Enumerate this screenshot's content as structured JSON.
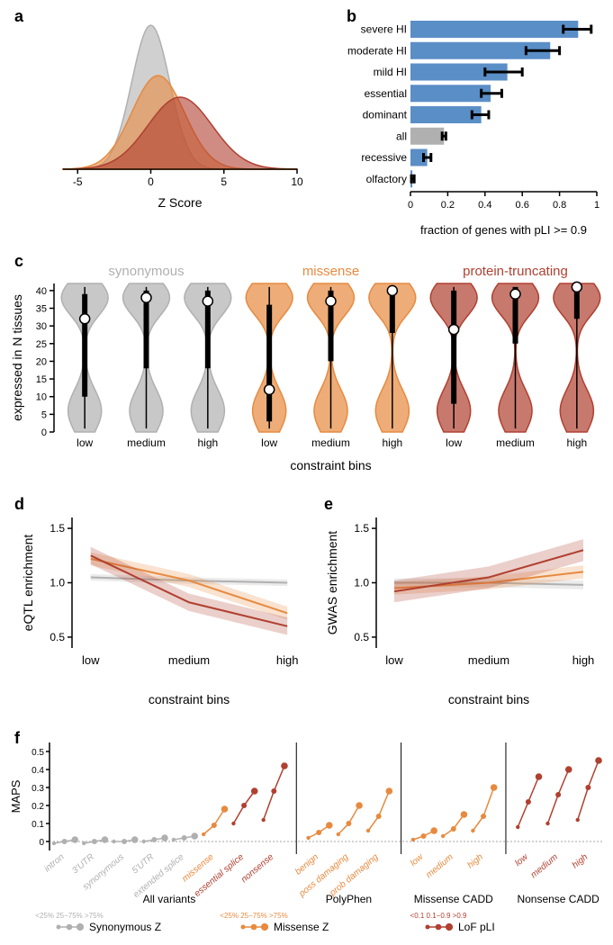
{
  "colors": {
    "grey": "#b0b0b0",
    "grey_fill": "#c0c0c0",
    "orange": "#e78a3f",
    "orange_fill": "#f0a868",
    "sienna": "#b04030",
    "sienna_fill": "#c56050",
    "blue": "#5a8ec7",
    "black": "#000000",
    "white": "#ffffff"
  },
  "panel_a": {
    "label": "a",
    "type": "density",
    "xlabel": "Z Score",
    "xlim": [
      -6,
      10
    ],
    "xticks": [
      -5,
      0,
      5,
      10
    ],
    "series": [
      {
        "color_key": "grey",
        "mean": 0,
        "sd": 1.3,
        "y": 1.0
      },
      {
        "color_key": "orange",
        "mean": 0.5,
        "sd": 1.8,
        "y": 0.65
      },
      {
        "color_key": "sienna",
        "mean": 2.0,
        "sd": 2.2,
        "y": 0.5
      }
    ]
  },
  "panel_b": {
    "label": "b",
    "type": "bar_horizontal",
    "xlabel": "fraction of genes with pLI >= 0.9",
    "xlim": [
      0,
      1
    ],
    "xticks": [
      0,
      0.2,
      0.4,
      0.6,
      0.8,
      1.0
    ],
    "categories": [
      "severe HI",
      "moderate HI",
      "mild HI",
      "essential",
      "dominant",
      "all",
      "recessive",
      "olfactory"
    ],
    "values": [
      0.9,
      0.75,
      0.52,
      0.43,
      0.38,
      0.18,
      0.09,
      0.01
    ],
    "err_lo": [
      0.82,
      0.62,
      0.4,
      0.38,
      0.33,
      0.17,
      0.07,
      0.005
    ],
    "err_hi": [
      0.97,
      0.8,
      0.6,
      0.49,
      0.42,
      0.19,
      0.11,
      0.02
    ],
    "bar_colors": [
      "#5a8ec7",
      "#5a8ec7",
      "#5a8ec7",
      "#5a8ec7",
      "#5a8ec7",
      "#b0b0b0",
      "#5a8ec7",
      "#5a8ec7"
    ]
  },
  "panel_c": {
    "label": "c",
    "type": "violin",
    "ylabel": "expressed in N tissues",
    "xlabel": "constraint bins",
    "ylim": [
      0,
      42
    ],
    "yticks": [
      0,
      5,
      10,
      15,
      20,
      25,
      30,
      35,
      40
    ],
    "bins": [
      "low",
      "medium",
      "high"
    ],
    "groups": [
      {
        "name": "synonymous",
        "color": "#b0b0b0",
        "title_color": "#b0b0b0",
        "medians": [
          32,
          38,
          37
        ],
        "q1": [
          10,
          18,
          18
        ],
        "q3": [
          39,
          40,
          40
        ]
      },
      {
        "name": "missense",
        "color": "#e78a3f",
        "title_color": "#e78a3f",
        "medians": [
          12,
          37,
          40
        ],
        "q1": [
          3,
          20,
          28
        ],
        "q3": [
          36,
          40,
          41
        ]
      },
      {
        "name": "protein-truncating",
        "color": "#b04030",
        "title_color": "#b04030",
        "medians": [
          29,
          39,
          41
        ],
        "q1": [
          8,
          25,
          32
        ],
        "q3": [
          40,
          41,
          41
        ]
      }
    ]
  },
  "panel_d": {
    "label": "d",
    "type": "line",
    "ylabel": "eQTL enrichment",
    "xlabel": "constraint bins",
    "ylim": [
      0.4,
      1.6
    ],
    "yticks": [
      0.5,
      1.0,
      1.5
    ],
    "x_categories": [
      "low",
      "medium",
      "high"
    ],
    "series": [
      {
        "color": "#b0b0b0",
        "y": [
          1.05,
          1.02,
          1.0
        ],
        "band": 0.03
      },
      {
        "color": "#e78a3f",
        "y": [
          1.22,
          1.02,
          0.72
        ],
        "band": 0.06
      },
      {
        "color": "#b04030",
        "y": [
          1.25,
          0.82,
          0.6
        ],
        "band": 0.08
      }
    ]
  },
  "panel_e": {
    "label": "e",
    "type": "line",
    "ylabel": "GWAS enrichment",
    "xlabel": "constraint bins",
    "ylim": [
      0.4,
      1.6
    ],
    "yticks": [
      0.5,
      1.0,
      1.5
    ],
    "x_categories": [
      "low",
      "medium",
      "high"
    ],
    "series": [
      {
        "color": "#b0b0b0",
        "y": [
          1.0,
          1.0,
          0.98
        ],
        "band": 0.04
      },
      {
        "color": "#e78a3f",
        "y": [
          0.95,
          1.0,
          1.1
        ],
        "band": 0.06
      },
      {
        "color": "#b04030",
        "y": [
          0.92,
          1.05,
          1.3
        ],
        "band": 0.1
      }
    ]
  },
  "panel_f": {
    "label": "f",
    "type": "dot_line",
    "ylabel": "MAPS",
    "ylim": [
      -0.05,
      0.55
    ],
    "yticks": [
      0,
      0.1,
      0.2,
      0.3,
      0.4,
      0.5
    ],
    "sections": [
      {
        "title": "All variants",
        "groups": [
          {
            "label": "intron",
            "color": "#b0b0b0",
            "y": [
              -0.01,
              0,
              0.01
            ]
          },
          {
            "label": "3'UTR",
            "color": "#b0b0b0",
            "y": [
              -0.01,
              0,
              0.01
            ]
          },
          {
            "label": "synonymous",
            "color": "#b0b0b0",
            "y": [
              0,
              0,
              0.01
            ]
          },
          {
            "label": "5'UTR",
            "color": "#b0b0b0",
            "y": [
              0,
              0.01,
              0.02
            ]
          },
          {
            "label": "extended splice",
            "color": "#b0b0b0",
            "y": [
              0.01,
              0.02,
              0.03
            ]
          },
          {
            "label": "missense",
            "color": "#e78a3f",
            "y": [
              0.04,
              0.09,
              0.18
            ]
          },
          {
            "label": "essential splice",
            "color": "#b04030",
            "y": [
              0.1,
              0.2,
              0.28
            ]
          },
          {
            "label": "nonsense",
            "color": "#b04030",
            "y": [
              0.12,
              0.28,
              0.42
            ]
          }
        ]
      },
      {
        "title": "PolyPhen",
        "groups": [
          {
            "label": "benign",
            "color": "#e78a3f",
            "y": [
              0.02,
              0.05,
              0.09
            ]
          },
          {
            "label": "poss damaging",
            "color": "#e78a3f",
            "y": [
              0.04,
              0.1,
              0.2
            ]
          },
          {
            "label": "prob damaging",
            "color": "#e78a3f",
            "y": [
              0.06,
              0.14,
              0.28
            ]
          }
        ]
      },
      {
        "title": "Missense CADD",
        "groups": [
          {
            "label": "low",
            "color": "#e78a3f",
            "y": [
              0.01,
              0.03,
              0.06
            ]
          },
          {
            "label": "medium",
            "color": "#e78a3f",
            "y": [
              0.03,
              0.07,
              0.15
            ]
          },
          {
            "label": "high",
            "color": "#e78a3f",
            "y": [
              0.06,
              0.14,
              0.3
            ]
          }
        ]
      },
      {
        "title": "Nonsense CADD",
        "groups": [
          {
            "label": "low",
            "color": "#b04030",
            "y": [
              0.08,
              0.22,
              0.36
            ]
          },
          {
            "label": "medium",
            "color": "#b04030",
            "y": [
              0.1,
              0.26,
              0.4
            ]
          },
          {
            "label": "high",
            "color": "#b04030",
            "y": [
              0.12,
              0.3,
              0.45
            ]
          }
        ]
      }
    ],
    "legend": [
      {
        "color": "#b0b0b0",
        "label": "Synonymous Z",
        "sub": "<25% 25−75% >75%"
      },
      {
        "color": "#e78a3f",
        "label": "Missense Z",
        "sub": "<25% 25−75% >75%"
      },
      {
        "color": "#b04030",
        "label": "LoF pLI",
        "sub": "<0.1 0.1−0.9 >0.9"
      }
    ]
  }
}
